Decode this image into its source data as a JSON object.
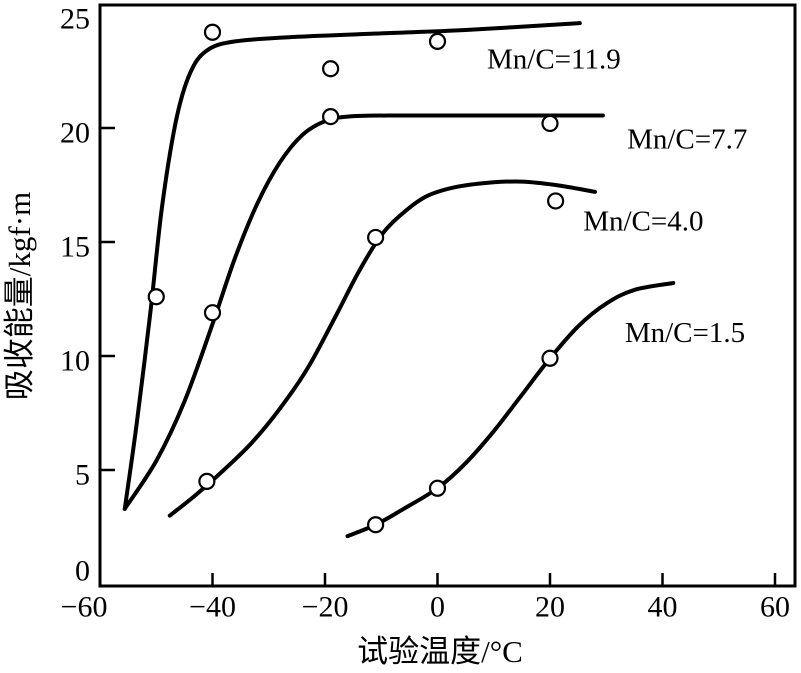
{
  "chart_data": {
    "type": "line",
    "title": "",
    "xlabel": "试验温度/°C",
    "ylabel": "吸收能量/kgf·m",
    "xlim": [
      -60,
      60
    ],
    "ylim": [
      0,
      25
    ],
    "grid": false,
    "legend_position": "inline-labels-right-of-curves",
    "axis_color": "#000000",
    "text_color": "#000000",
    "background": "#ffffff",
    "marker": {
      "shape": "open-circle",
      "radius": 7.5,
      "fill": "#ffffff",
      "stroke": "#000000"
    },
    "x_ticks": [
      {
        "value": -60,
        "label": "−60"
      },
      {
        "value": -40,
        "label": "−40"
      },
      {
        "value": -20,
        "label": "−20"
      },
      {
        "value": 0,
        "label": "0"
      },
      {
        "value": 20,
        "label": "20"
      },
      {
        "value": 40,
        "label": "40"
      },
      {
        "value": 60,
        "label": "60"
      }
    ],
    "y_ticks": [
      {
        "value": 0,
        "label": "0"
      },
      {
        "value": 5,
        "label": "5"
      },
      {
        "value": 10,
        "label": "10"
      },
      {
        "value": 15,
        "label": "15"
      },
      {
        "value": 20,
        "label": "20"
      },
      {
        "value": 25,
        "label": "25"
      }
    ],
    "x_tick_marks": [
      -40,
      -20,
      0,
      20,
      40,
      60
    ],
    "y_tick_marks": [
      5,
      10,
      15,
      20
    ],
    "series": [
      {
        "name": "Mn/C=11.9",
        "label": "Mn/C=11.9",
        "label_anchor": [
          8.8,
          23.0
        ],
        "points": [
          [
            -50,
            12.6
          ],
          [
            -40,
            24.2
          ],
          [
            -19,
            22.6
          ],
          [
            0,
            23.8
          ]
        ],
        "curve": [
          [
            -55.6,
            3.3
          ],
          [
            -53.5,
            7.0
          ],
          [
            -51,
            12.0
          ],
          [
            -49,
            16.5
          ],
          [
            -46.5,
            20.3
          ],
          [
            -44,
            22.4
          ],
          [
            -41,
            23.4
          ],
          [
            -36,
            23.8
          ],
          [
            -25,
            24.0
          ],
          [
            -10,
            24.15
          ],
          [
            5,
            24.3
          ],
          [
            25.3,
            24.6
          ]
        ]
      },
      {
        "name": "Mn/C=7.7",
        "label": "Mn/C=7.7",
        "label_anchor": [
          33.7,
          19.5
        ],
        "points": [
          [
            -40,
            11.9
          ],
          [
            -19,
            20.5
          ],
          [
            20,
            20.2
          ]
        ],
        "curve": [
          [
            -55.6,
            3.3
          ],
          [
            -50,
            5.4
          ],
          [
            -45,
            8.0
          ],
          [
            -40,
            11.4
          ],
          [
            -36,
            14.3
          ],
          [
            -32,
            16.7
          ],
          [
            -28,
            18.5
          ],
          [
            -24,
            19.7
          ],
          [
            -20,
            20.3
          ],
          [
            -16,
            20.5
          ],
          [
            -8,
            20.55
          ],
          [
            5,
            20.55
          ],
          [
            18,
            20.55
          ],
          [
            29.4,
            20.55
          ]
        ]
      },
      {
        "name": "Mn/C=4.0",
        "label": "Mn/C=4.0",
        "label_anchor": [
          25.9,
          15.9
        ],
        "points": [
          [
            -41,
            4.5
          ],
          [
            -11,
            15.2
          ],
          [
            21,
            16.8
          ]
        ],
        "curve": [
          [
            -47.6,
            3.0
          ],
          [
            -43,
            3.9
          ],
          [
            -38,
            5.0
          ],
          [
            -33,
            6.2
          ],
          [
            -28,
            7.7
          ],
          [
            -23,
            9.5
          ],
          [
            -18,
            11.8
          ],
          [
            -14,
            13.7
          ],
          [
            -10,
            15.3
          ],
          [
            -6,
            16.3
          ],
          [
            -2,
            17.0
          ],
          [
            3,
            17.4
          ],
          [
            9,
            17.6
          ],
          [
            15,
            17.65
          ],
          [
            21,
            17.5
          ],
          [
            28,
            17.2
          ]
        ]
      },
      {
        "name": "Mn/C=1.5",
        "label": "Mn/C=1.5",
        "label_anchor": [
          33.3,
          11.0
        ],
        "points": [
          [
            -11,
            2.6
          ],
          [
            0,
            4.2
          ],
          [
            20,
            9.9
          ]
        ],
        "curve": [
          [
            -16,
            2.1
          ],
          [
            -11,
            2.6
          ],
          [
            -6,
            3.3
          ],
          [
            0,
            4.2
          ],
          [
            5,
            5.3
          ],
          [
            10,
            6.7
          ],
          [
            15,
            8.3
          ],
          [
            20,
            9.9
          ],
          [
            25,
            11.3
          ],
          [
            30,
            12.3
          ],
          [
            35,
            12.9
          ],
          [
            41.9,
            13.2
          ]
        ]
      }
    ]
  }
}
